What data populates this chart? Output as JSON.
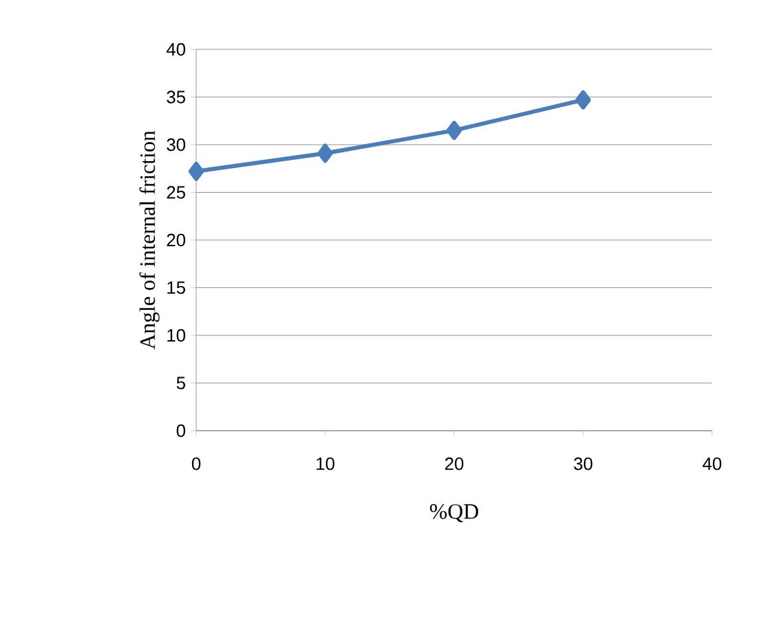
{
  "chart_data": {
    "type": "line",
    "xlabel": "%QD",
    "ylabel": "Angle of internal friction",
    "x": [
      0,
      10,
      20,
      30
    ],
    "series": [
      {
        "color": "#4a7ebb",
        "values": [
          27.2,
          29.1,
          31.5,
          34.7
        ]
      }
    ],
    "xlim": [
      0,
      40
    ],
    "xticks": [
      0,
      10,
      20,
      30,
      40
    ],
    "ylim": [
      0,
      40
    ],
    "yticks": [
      0,
      5,
      10,
      15,
      20,
      25,
      30,
      35,
      40
    ],
    "grid": "y",
    "marker": "diamond",
    "line_style": "solid"
  }
}
